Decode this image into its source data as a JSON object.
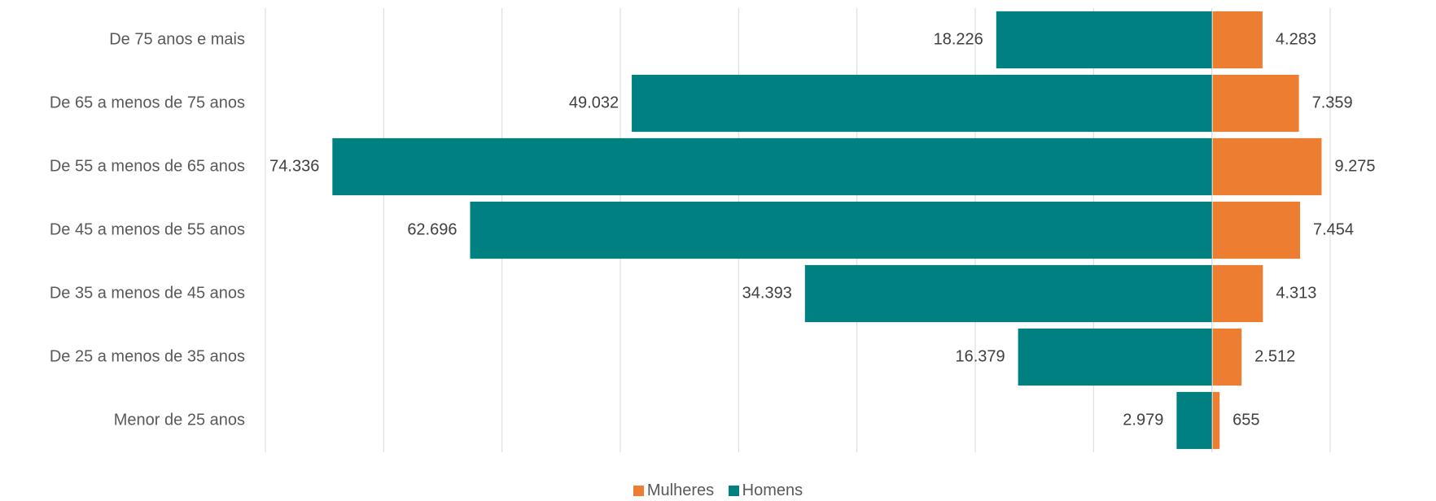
{
  "chart_data": {
    "type": "bar",
    "orientation": "horizontal-diverging",
    "categories": [
      "De 75 anos e mais",
      "De 65 a menos de 75 anos",
      "De 55 a menos de 65 anos",
      "De 45 a menos de 55 anos",
      "De 35 a menos de 45 anos",
      "De 25 a menos de 35 anos",
      "Menor de 25 anos"
    ],
    "series": [
      {
        "name": "Homens",
        "color": "#008080",
        "values": [
          18226,
          49032,
          74336,
          62696,
          34393,
          16379,
          2979
        ],
        "labels": [
          "18.226",
          "49.032",
          "74.336",
          "62.696",
          "34.393",
          "16.379",
          "2.979"
        ]
      },
      {
        "name": "Mulheres",
        "color": "#ED7D31",
        "values": [
          4283,
          7359,
          9275,
          7454,
          4313,
          2512,
          655
        ],
        "labels": [
          "4.283",
          "7.359",
          "9.275",
          "7.454",
          "4.313",
          "2.512",
          "655"
        ]
      }
    ],
    "legend": {
      "position": "bottom",
      "order": [
        "Mulheres",
        "Homens"
      ]
    },
    "xlim": [
      -80000,
      10000
    ],
    "gridlines": true
  }
}
